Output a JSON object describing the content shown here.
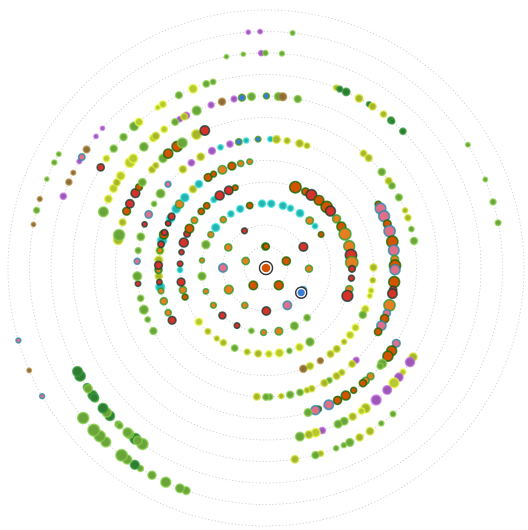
{
  "diagram": {
    "type": "radial-bubble-rings",
    "ring_count": 12,
    "legend": "none",
    "palette": {
      "purple": "#9b59b6",
      "blue": "#3a7bd5",
      "teal": "#27b3b0",
      "orange": "#e67e22",
      "dark-orange": "#d35400",
      "red": "#d6322a",
      "pink": "#e0708a",
      "olive": "#a7b52a",
      "yellow-green": "#b8c832",
      "green": "#6aa43a",
      "dark-green": "#2e7d32",
      "brown": "#8d6e35"
    },
    "center_marker": {
      "color": "#d35400",
      "ring_color": "#333333"
    },
    "highlighted_node": {
      "ring": 2,
      "angle": 125,
      "color": "#3a7bd5",
      "ring_color": "#333333"
    },
    "arcs": [
      {
        "ring": 1,
        "start": 0,
        "end": 360,
        "count": 6,
        "colors": [
          "orange",
          "dark-orange"
        ],
        "size": [
          3,
          5
        ]
      },
      {
        "ring": 2,
        "start": 60,
        "end": 330,
        "count": 10,
        "colors": [
          "orange",
          "red",
          "pink"
        ],
        "size": [
          2.5,
          4.5
        ]
      },
      {
        "ring": 3,
        "start": -60,
        "end": 60,
        "count": 14,
        "colors": [
          "orange",
          "teal",
          "dark-orange"
        ],
        "size": [
          2.5,
          4
        ]
      },
      {
        "ring": 3,
        "start": 140,
        "end": 290,
        "count": 12,
        "colors": [
          "green",
          "red",
          "orange"
        ],
        "size": [
          2.5,
          4
        ]
      },
      {
        "ring": 4,
        "start": -110,
        "end": -20,
        "count": 16,
        "colors": [
          "orange",
          "teal",
          "dark-orange",
          "red"
        ],
        "size": [
          2.5,
          4.5
        ]
      },
      {
        "ring": 4,
        "start": 20,
        "end": 110,
        "count": 16,
        "colors": [
          "red",
          "dark-orange",
          "orange"
        ],
        "size": [
          3,
          6.5
        ]
      },
      {
        "ring": 4,
        "start": 150,
        "end": 230,
        "count": 12,
        "colors": [
          "olive",
          "green",
          "yellow-green"
        ],
        "size": [
          2.5,
          4
        ]
      },
      {
        "ring": 5,
        "start": -100,
        "end": -10,
        "count": 20,
        "colors": [
          "orange",
          "dark-orange",
          "olive",
          "teal"
        ],
        "size": [
          2.5,
          4.5
        ]
      },
      {
        "ring": 5,
        "start": 90,
        "end": 160,
        "count": 14,
        "colors": [
          "olive",
          "green",
          "yellow-green",
          "brown"
        ],
        "size": [
          2.5,
          4
        ]
      },
      {
        "ring": 5,
        "start": 240,
        "end": 300,
        "count": 12,
        "colors": [
          "red",
          "pink",
          "orange"
        ],
        "size": [
          2.5,
          4
        ]
      },
      {
        "ring": 6,
        "start": -40,
        "end": 20,
        "count": 14,
        "colors": [
          "teal",
          "blue",
          "purple",
          "olive"
        ],
        "size": [
          2.5,
          4
        ]
      },
      {
        "ring": 6,
        "start": 60,
        "end": 120,
        "count": 18,
        "colors": [
          "red",
          "dark-orange",
          "orange",
          "pink"
        ],
        "size": [
          3,
          6
        ]
      },
      {
        "ring": 6,
        "start": 135,
        "end": 185,
        "count": 14,
        "colors": [
          "green",
          "olive",
          "purple"
        ],
        "size": [
          2.5,
          4
        ]
      },
      {
        "ring": 6,
        "start": 240,
        "end": 310,
        "count": 14,
        "colors": [
          "red",
          "pink",
          "green"
        ],
        "size": [
          2.5,
          4.5
        ]
      },
      {
        "ring": 7,
        "start": 40,
        "end": 80,
        "count": 10,
        "colors": [
          "green",
          "olive"
        ],
        "size": [
          2.5,
          4
        ]
      },
      {
        "ring": 7,
        "start": 120,
        "end": 165,
        "count": 16,
        "colors": [
          "orange",
          "green",
          "pink",
          "dark-orange"
        ],
        "size": [
          3,
          5
        ]
      },
      {
        "ring": 7,
        "start": 280,
        "end": 335,
        "count": 16,
        "colors": [
          "dark-orange",
          "red",
          "olive",
          "green"
        ],
        "size": [
          3,
          5.5
        ]
      },
      {
        "ring": 8,
        "start": -30,
        "end": 10,
        "count": 12,
        "colors": [
          "purple",
          "blue",
          "green",
          "brown"
        ],
        "size": [
          2.5,
          4
        ]
      },
      {
        "ring": 8,
        "start": 120,
        "end": 170,
        "count": 16,
        "colors": [
          "olive",
          "green",
          "yellow-green",
          "purple"
        ],
        "size": [
          3,
          5
        ]
      },
      {
        "ring": 8,
        "start": 290,
        "end": 335,
        "count": 14,
        "colors": [
          "yellow-green",
          "olive",
          "green"
        ],
        "size": [
          3,
          5
        ]
      },
      {
        "ring": 9,
        "start": 20,
        "end": 45,
        "count": 10,
        "colors": [
          "green",
          "dark-green",
          "olive"
        ],
        "size": [
          2.5,
          4
        ]
      },
      {
        "ring": 9,
        "start": 140,
        "end": 170,
        "count": 10,
        "colors": [
          "green",
          "olive"
        ],
        "size": [
          2.5,
          4
        ]
      },
      {
        "ring": 9,
        "start": 300,
        "end": 345,
        "count": 12,
        "colors": [
          "yellow-green",
          "green",
          "red"
        ],
        "size": [
          2.5,
          4.5
        ]
      },
      {
        "ring": 10,
        "start": -10,
        "end": 5,
        "count": 5,
        "colors": [
          "purple",
          "green"
        ],
        "size": [
          2,
          3
        ]
      },
      {
        "ring": 10,
        "start": 215,
        "end": 240,
        "count": 18,
        "colors": [
          "green",
          "dark-green"
        ],
        "size": [
          3,
          5.5
        ]
      },
      {
        "ring": 10,
        "start": 290,
        "end": 310,
        "count": 8,
        "colors": [
          "pink",
          "brown",
          "purple"
        ],
        "size": [
          2,
          3.5
        ]
      },
      {
        "ring": 11,
        "start": -5,
        "end": 5,
        "count": 3,
        "colors": [
          "purple",
          "green"
        ],
        "size": [
          2,
          2.5
        ]
      },
      {
        "ring": 11,
        "start": 60,
        "end": 80,
        "count": 4,
        "colors": [
          "green",
          "purple"
        ],
        "size": [
          2,
          3
        ]
      },
      {
        "ring": 11,
        "start": 200,
        "end": 230,
        "count": 12,
        "colors": [
          "dark-green",
          "green"
        ],
        "size": [
          3,
          6
        ]
      },
      {
        "ring": 11,
        "start": 280,
        "end": 300,
        "count": 6,
        "colors": [
          "green",
          "brown"
        ],
        "size": [
          2,
          3
        ]
      },
      {
        "ring": 12,
        "start": 240,
        "end": 255,
        "count": 3,
        "colors": [
          "brown",
          "pink"
        ],
        "size": [
          2,
          2.5
        ]
      }
    ]
  }
}
